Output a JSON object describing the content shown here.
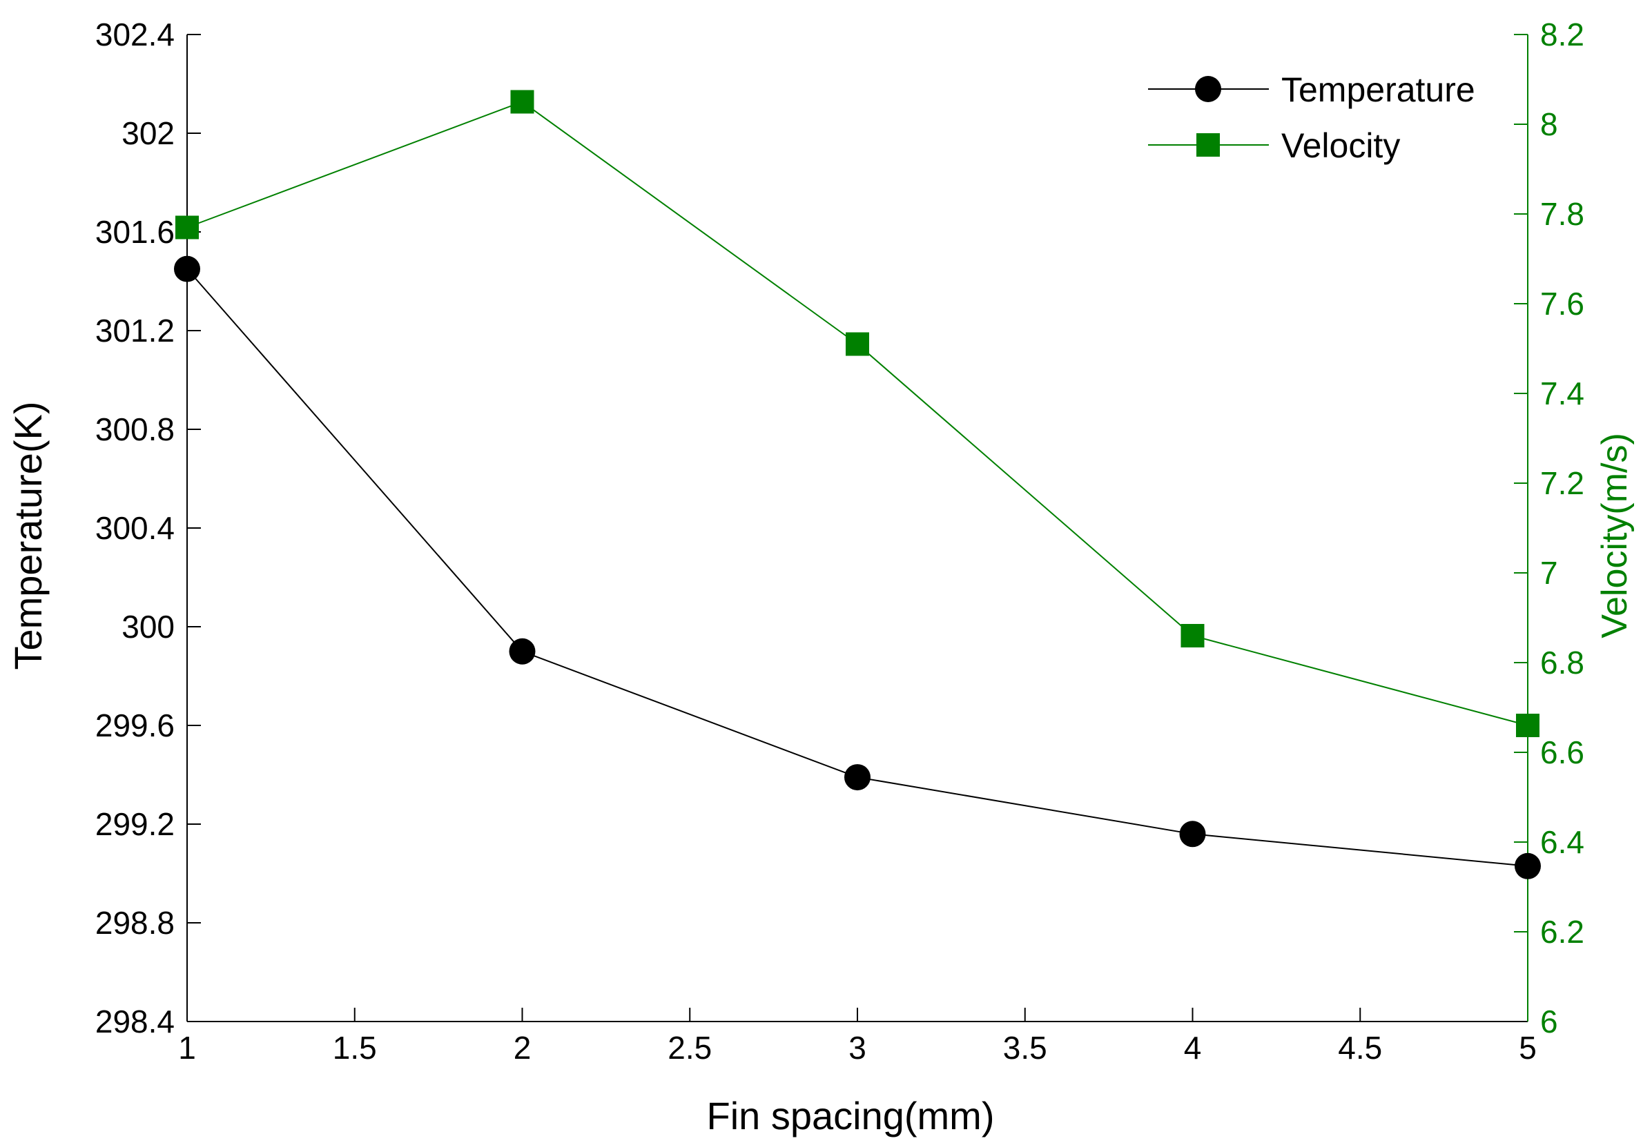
{
  "chart_data": {
    "type": "line",
    "title": "",
    "xlabel": "Fin spacing(mm)",
    "ylabel": "Temperature(K)",
    "y2label": "Velocity(m/s)",
    "xlim": [
      1,
      5
    ],
    "ylim": [
      298.4,
      302.4
    ],
    "y2lim": [
      6,
      8.2
    ],
    "grid": false,
    "legend_position": "top-right",
    "x_ticks": [
      "1",
      "1.5",
      "2",
      "2.5",
      "3",
      "3.5",
      "4",
      "4.5",
      "5"
    ],
    "y_ticks": [
      "298.4",
      "298.8",
      "299.2",
      "299.6",
      "300",
      "300.4",
      "300.8",
      "301.2",
      "301.6",
      "302",
      "302.4"
    ],
    "y2_ticks": [
      "6",
      "6.2",
      "6.4",
      "6.6",
      "6.8",
      "7",
      "7.2",
      "7.4",
      "7.6",
      "7.8",
      "8",
      "8.2"
    ],
    "x": [
      1,
      2,
      3,
      4,
      5
    ],
    "series": [
      {
        "name": "Temperature",
        "axis": "left",
        "marker": "circle",
        "color": "#000000",
        "values": [
          301.45,
          299.9,
          299.39,
          299.16,
          299.03
        ]
      },
      {
        "name": "Velocity",
        "axis": "right",
        "marker": "square",
        "color": "#008000",
        "values": [
          7.77,
          8.05,
          7.51,
          6.86,
          6.66
        ]
      }
    ]
  }
}
